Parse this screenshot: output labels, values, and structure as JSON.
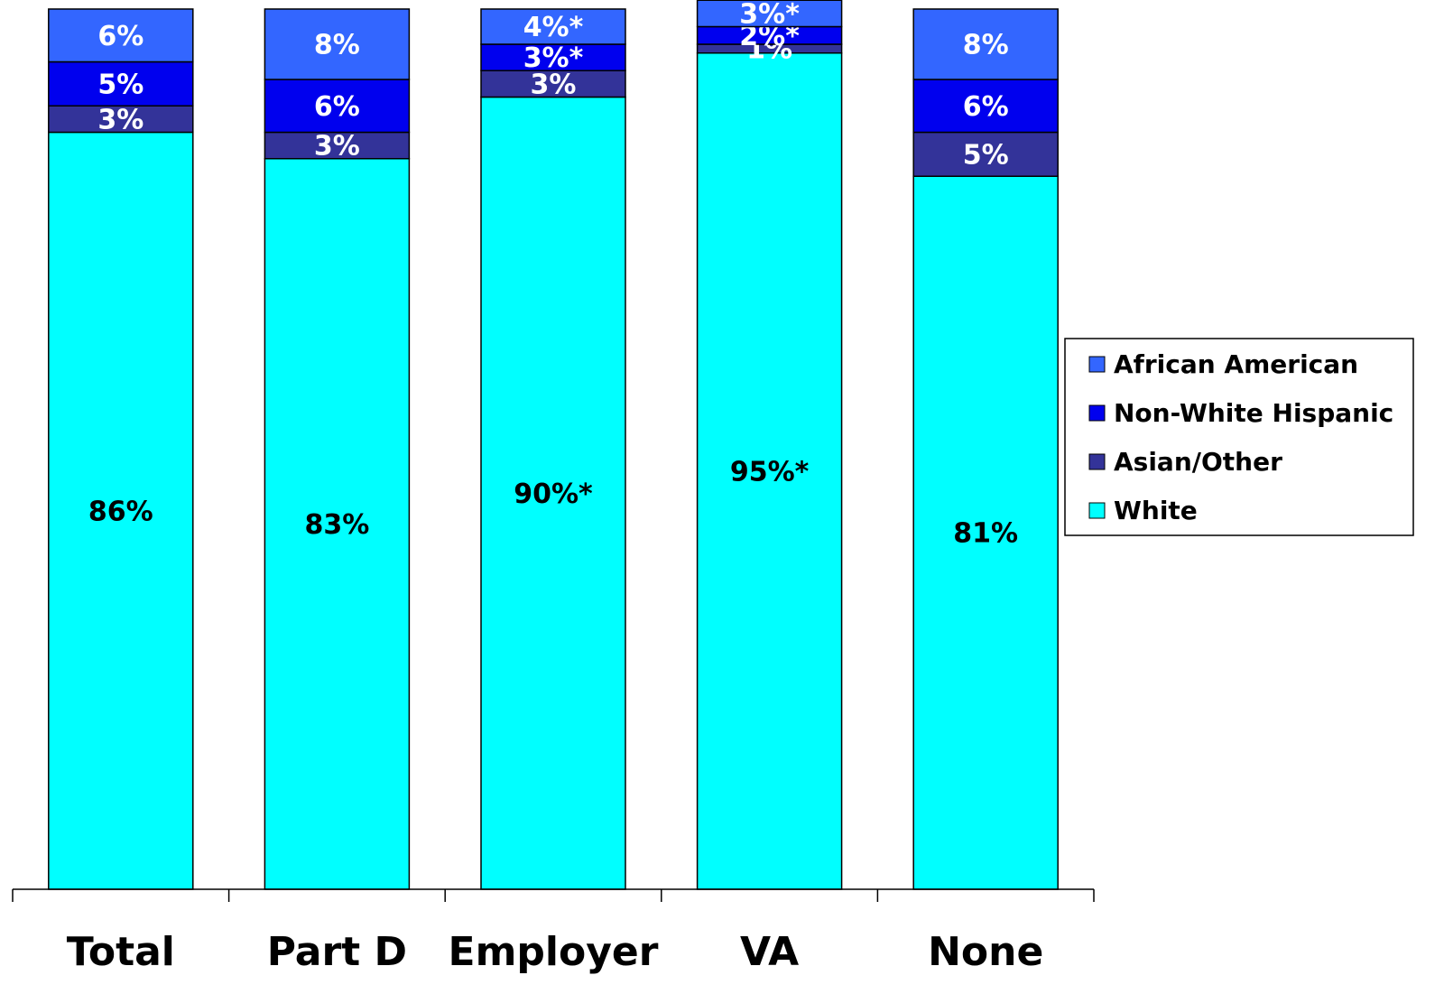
{
  "chart_data": {
    "type": "stacked_bar",
    "categories": [
      "Total",
      "Part D",
      "Employer",
      "VA",
      "None"
    ],
    "series": [
      {
        "name": "White",
        "color": "#00ffff",
        "label_color": "#000000",
        "values": [
          86,
          83,
          90,
          95,
          81
        ],
        "value_labels": [
          "86%",
          "83%",
          "90%*",
          "95%*",
          "81%"
        ]
      },
      {
        "name": "Asian/Other",
        "color": "#333399",
        "label_color": "#ffffff",
        "values": [
          3,
          3,
          3,
          1,
          5
        ],
        "value_labels": [
          "3%",
          "3%",
          "3%",
          "1%",
          "5%"
        ]
      },
      {
        "name": "Non-White Hispanic",
        "color": "#0000ee",
        "label_color": "#ffffff",
        "values": [
          5,
          6,
          3,
          2,
          6
        ],
        "value_labels": [
          "5%",
          "6%",
          "3%*",
          "2%*",
          "6%"
        ]
      },
      {
        "name": "African American",
        "color": "#3366ff",
        "label_color": "#ffffff",
        "values": [
          6,
          8,
          4,
          3,
          8
        ],
        "value_labels": [
          "6%",
          "8%",
          "4%*",
          "3%*",
          "8%"
        ]
      }
    ],
    "ylim": [
      0,
      100
    ],
    "legend": "right"
  }
}
